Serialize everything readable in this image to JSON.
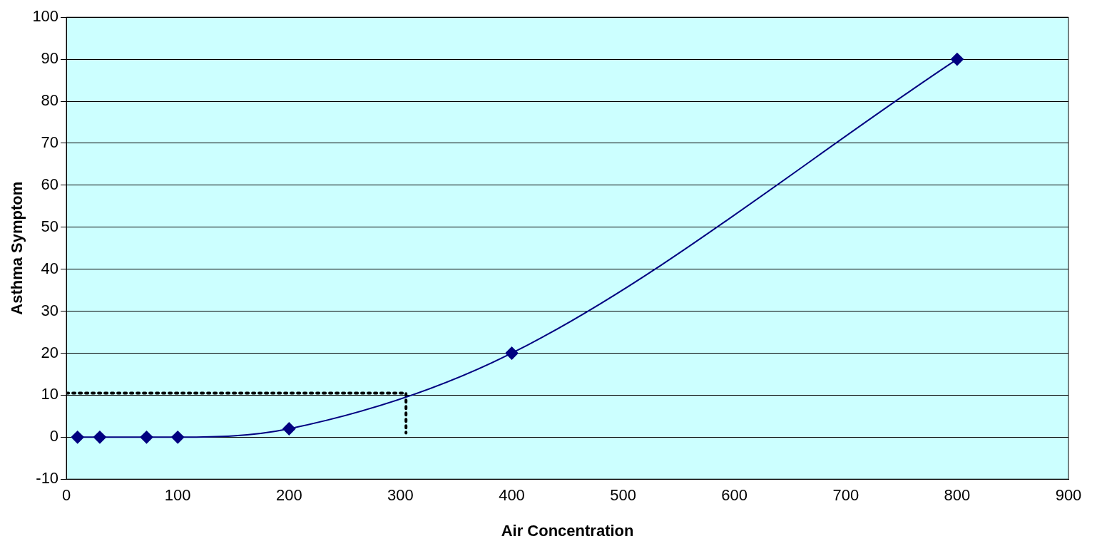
{
  "chart_data": {
    "type": "line",
    "xlabel": "Air Concentration",
    "ylabel": "Asthma Symptom",
    "xlim": [
      0,
      900
    ],
    "xticks": [
      0,
      100,
      200,
      300,
      400,
      500,
      600,
      700,
      800,
      900
    ],
    "ylim": [
      -10,
      100
    ],
    "yticks": [
      -10,
      0,
      10,
      20,
      30,
      40,
      50,
      60,
      70,
      80,
      90,
      100
    ],
    "grid": "y",
    "legend": false,
    "series": [
      {
        "color": "#000080",
        "x": [
          10,
          30,
          72,
          100,
          200,
          400,
          800
        ],
        "values": [
          0,
          0,
          0,
          0,
          2,
          20,
          90
        ],
        "marker": "diamond",
        "line_style": "solid"
      },
      {
        "color": "#000000",
        "x": [
          0,
          305,
          305
        ],
        "values": [
          10.5,
          10.5,
          1
        ],
        "marker": "none",
        "line_style": "dotted"
      }
    ]
  }
}
